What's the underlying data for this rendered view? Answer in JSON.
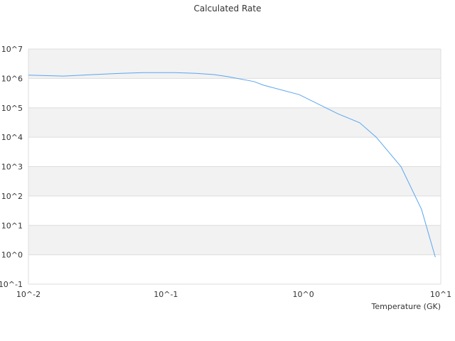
{
  "chart_data": {
    "type": "line",
    "title": "Calculated Rate",
    "xlabel": "Temperature (GK)",
    "ylabel": "",
    "xscale": "log",
    "yscale": "log",
    "xlim": [
      0.01,
      10
    ],
    "ylim": [
      0.1,
      10000000
    ],
    "xticks": [
      "10^-2",
      "10^-1",
      "10^0",
      "10^1"
    ],
    "yticks": [
      "10^7",
      "10^6",
      "10^5",
      "10^4",
      "10^3",
      "10^2",
      "10^1",
      "10^0",
      "10^-1"
    ],
    "grid": "horizontal bands",
    "legend": "none",
    "colors": {
      "line": "#5aa5f0",
      "band": "#f2f2f2",
      "grid": "#dddddd"
    },
    "series": [
      {
        "x": [
          0.01,
          0.018,
          0.0295,
          0.047,
          0.068,
          0.115,
          0.166,
          0.224,
          0.282,
          0.437,
          0.513,
          0.933,
          1.78,
          2.57,
          3.39,
          5.13,
          7.24,
          9.12
        ],
        "y": [
          1290000,
          1200000,
          1350000,
          1480000,
          1580000,
          1580000,
          1480000,
          1350000,
          1150000,
          780000,
          590000,
          280000,
          63000,
          31000,
          10000,
          1000,
          35,
          0.83
        ]
      }
    ]
  }
}
